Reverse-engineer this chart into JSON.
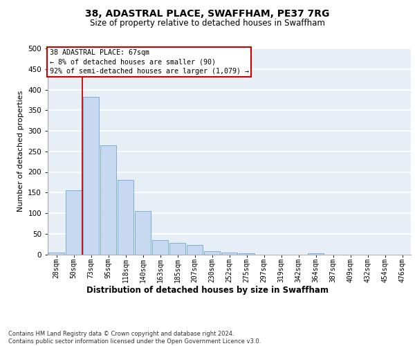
{
  "title": "38, ADASTRAL PLACE, SWAFFHAM, PE37 7RG",
  "subtitle": "Size of property relative to detached houses in Swaffham",
  "xlabel": "Distribution of detached houses by size in Swaffham",
  "ylabel": "Number of detached properties",
  "bar_color": "#c6d9f0",
  "bar_edge_color": "#7aaedc",
  "plot_bg_color": "#e8eef6",
  "fig_bg_color": "#ffffff",
  "categories": [
    "28sqm",
    "50sqm",
    "73sqm",
    "95sqm",
    "118sqm",
    "140sqm",
    "163sqm",
    "185sqm",
    "207sqm",
    "230sqm",
    "252sqm",
    "275sqm",
    "297sqm",
    "319sqm",
    "342sqm",
    "364sqm",
    "387sqm",
    "409sqm",
    "432sqm",
    "454sqm",
    "476sqm"
  ],
  "values": [
    5,
    155,
    383,
    265,
    180,
    105,
    35,
    28,
    22,
    8,
    5,
    3,
    0,
    0,
    0,
    3,
    0,
    0,
    0,
    0,
    0
  ],
  "ylim": [
    0,
    500
  ],
  "yticks": [
    0,
    50,
    100,
    150,
    200,
    250,
    300,
    350,
    400,
    450,
    500
  ],
  "vline_x": 1.5,
  "annotation_text": "38 ADASTRAL PLACE: 67sqm\n← 8% of detached houses are smaller (90)\n92% of semi-detached houses are larger (1,079) →",
  "annotation_box_facecolor": "#ffffff",
  "annotation_box_edgecolor": "#cc0000",
  "footer_line1": "Contains HM Land Registry data © Crown copyright and database right 2024.",
  "footer_line2": "Contains public sector information licensed under the Open Government Licence v3.0."
}
